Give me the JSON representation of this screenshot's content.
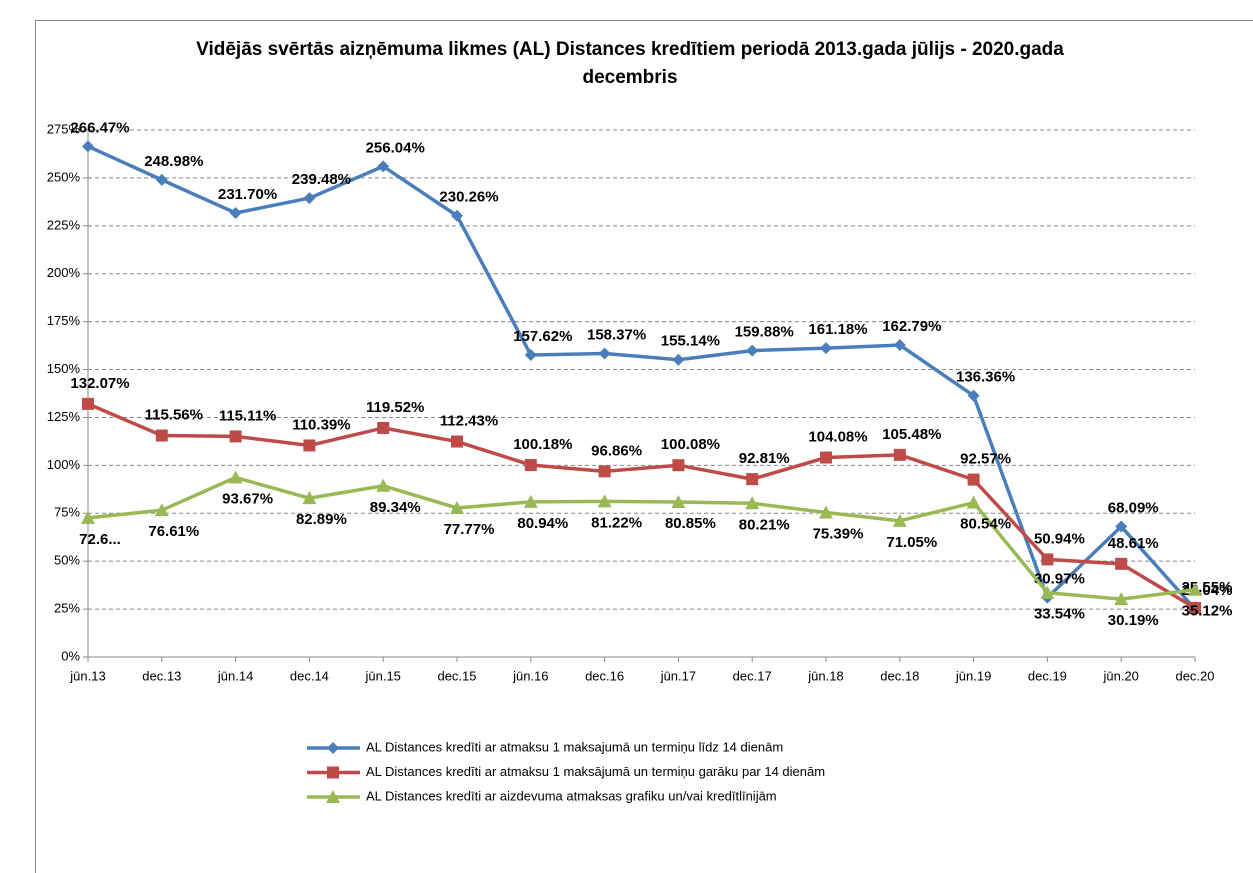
{
  "chart_data": {
    "type": "line",
    "title": "Vidējās svērtās aizņēmuma likmes (AL) Distances kredītiem periodā 2013.gada jūlijs - 2020.gada decembris",
    "categories": [
      "jūn.13",
      "dec.13",
      "jūn.14",
      "dec.14",
      "jūn.15",
      "dec.15",
      "jūn.16",
      "dec.16",
      "jūn.17",
      "dec.17",
      "jūn.18",
      "dec.18",
      "jūn.19",
      "dec.19",
      "jūn.20",
      "dec.20"
    ],
    "series": [
      {
        "name": "AL Distances kredīti ar atmaksu 1 maksajumā un termiņu līdz 14 dienām",
        "color": "#4a7ebb",
        "marker": "diamond",
        "values": [
          266.47,
          248.98,
          231.7,
          239.48,
          256.04,
          230.26,
          157.62,
          158.37,
          155.14,
          159.88,
          161.18,
          162.79,
          136.36,
          30.97,
          68.09,
          25.04
        ],
        "value_labels": [
          "266.47%",
          "248.98%",
          "231.70%",
          "239.48%",
          "256.04%",
          "230.26%",
          "157.62%",
          "158.37%",
          "155.14%",
          "159.88%",
          "161.18%",
          "162.79%",
          "136.36%",
          "30.97%",
          "68.09%",
          "25.04%"
        ]
      },
      {
        "name": "AL Distances kredīti ar atmaksu 1 maksājumā un termiņu garāku par 14 dienām",
        "color": "#be4b48",
        "marker": "square",
        "values": [
          132.07,
          115.56,
          115.11,
          110.39,
          119.52,
          112.43,
          100.18,
          96.86,
          100.08,
          92.81,
          104.08,
          105.48,
          92.57,
          50.94,
          48.61,
          25.55
        ],
        "value_labels": [
          "132.07%",
          "115.56%",
          "115.11%",
          "110.39%",
          "119.52%",
          "112.43%",
          "100.18%",
          "96.86%",
          "100.08%",
          "92.81%",
          "104.08%",
          "105.48%",
          "92.57%",
          "50.94%",
          "48.61%",
          "25.55%"
        ]
      },
      {
        "name": "AL Distances kredīti ar aizdevuma atmaksas grafiku un/vai kredītlīnijām",
        "color": "#98b954",
        "marker": "triangle",
        "values": [
          72.6,
          76.61,
          93.67,
          82.89,
          89.34,
          77.77,
          80.94,
          81.22,
          80.85,
          80.21,
          75.39,
          71.05,
          80.54,
          33.54,
          30.19,
          35.12
        ],
        "value_labels": [
          "72.6...",
          "76.61%",
          "93.67%",
          "82.89%",
          "89.34%",
          "77.77%",
          "80.94%",
          "81.22%",
          "80.85%",
          "80.21%",
          "75.39%",
          "71.05%",
          "80.54%",
          "33.54%",
          "30.19%",
          "35.12%"
        ]
      }
    ],
    "ylim": [
      0,
      275
    ],
    "yticks": [
      {
        "value": 0,
        "label": "0%"
      },
      {
        "value": 25,
        "label": "25%"
      },
      {
        "value": 50,
        "label": "50%"
      },
      {
        "value": 75,
        "label": "75%"
      },
      {
        "value": 100,
        "label": "100%"
      },
      {
        "value": 125,
        "label": "125%"
      },
      {
        "value": 150,
        "label": "150%"
      },
      {
        "value": 175,
        "label": "175%"
      },
      {
        "value": 200,
        "label": "200%"
      },
      {
        "value": 225,
        "label": "225%"
      },
      {
        "value": 250,
        "label": "250%"
      },
      {
        "value": 275,
        "label": "275%"
      }
    ],
    "grid": true,
    "legend": "bottom"
  }
}
